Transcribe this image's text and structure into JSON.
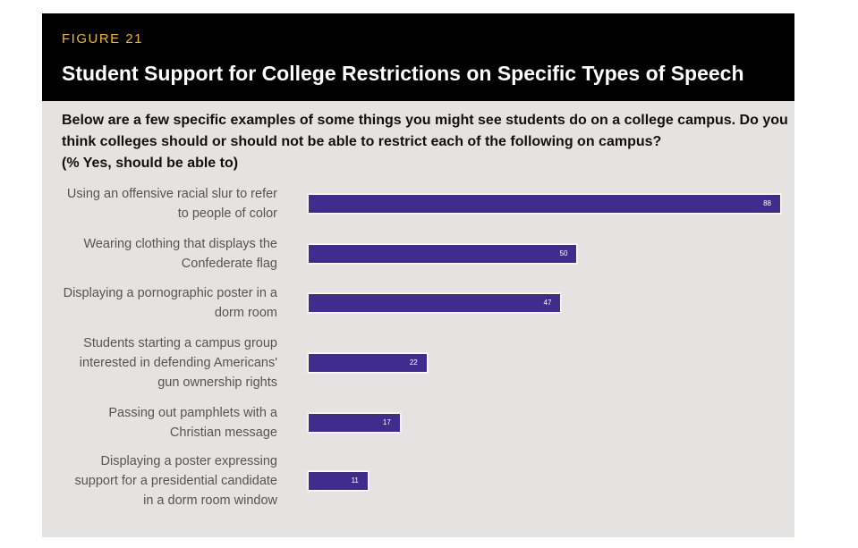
{
  "figure_label": "FIGURE 21",
  "title": "Student Support for College Restrictions on Specific Types of Speech",
  "question_lines": [
    "Below are a few specific examples of some things you might see students do on a college campus. Do you",
    "think colleges should or should not be able to restrict each of the following on campus?",
    "(% Yes, should be able to)"
  ],
  "colors": {
    "bar": "#3e2d8c",
    "header_bg": "#000000",
    "label_accent": "#f1b82d",
    "panel_bg": "#e4e3e1"
  },
  "chart_data": {
    "type": "bar",
    "orientation": "horizontal",
    "title": "Student Support for College Restrictions on Specific Types of Speech",
    "xlabel": "",
    "ylabel": "",
    "xlim": [
      0,
      88
    ],
    "categories": [
      [
        "Using an offensive racial slur to refer",
        "to people of color"
      ],
      [
        "Wearing clothing that displays the",
        "Confederate flag"
      ],
      [
        "Displaying a pornographic poster in a",
        "dorm room"
      ],
      [
        "Students starting a campus group",
        "interested in defending Americans'",
        "gun ownership rights"
      ],
      [
        "Passing out pamphlets with a",
        "Christian message"
      ],
      [
        "Displaying a poster expressing",
        "support for a presidential candidate",
        "in a dorm room window"
      ]
    ],
    "values": [
      88,
      50,
      47,
      22,
      17,
      11
    ],
    "grid": false,
    "legend": "none"
  }
}
